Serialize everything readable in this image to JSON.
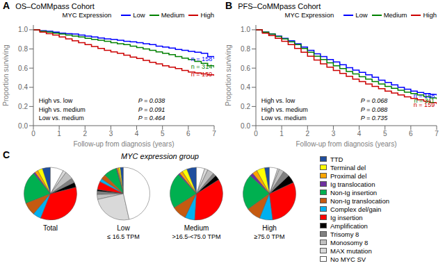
{
  "chart_data": [
    {
      "type": "line",
      "line_style": "step",
      "title": "OS–CoMMpass Cohort",
      "x_label": "Follow-up from diagnosis (years)",
      "y_label": "Proportion surviving",
      "xlim": [
        0,
        7
      ],
      "ylim": [
        0.0,
        1.05
      ],
      "xticks": [
        0,
        1,
        2,
        3,
        4,
        5,
        6,
        7
      ],
      "yticks": [
        {
          "value": 0.0,
          "label": "0.0"
        },
        0.2,
        0.4,
        0.6,
        0.8,
        {
          "value": 1.0,
          "label": "1.0"
        }
      ],
      "grid": false,
      "legend": "top-right",
      "legend_title": "MYC Expression",
      "annotations": [
        {
          "text": "A",
          "style": "bold"
        },
        {
          "text": "n = 158",
          "color": "#0000FF",
          "x": 6.95,
          "y": 0.695
        },
        {
          "text": "n = 314",
          "color": "#008000",
          "x": 6.95,
          "y": 0.615
        },
        {
          "text": "n = 159",
          "color": "#CC0000",
          "x": 6.95,
          "y": 0.535
        },
        {
          "text": "High vs. low",
          "label": "P = 0.038"
        },
        {
          "text": "High vs. medium",
          "label": "P = 0.091"
        },
        {
          "text": "Low vs. medium",
          "label": "P = 0.464"
        }
      ],
      "series": [
        {
          "name": "Low",
          "color": "#0000FF",
          "x": [
            0,
            0.25,
            0.5,
            0.75,
            1.0,
            1.25,
            1.5,
            1.75,
            2.0,
            2.25,
            2.5,
            2.75,
            3.0,
            3.25,
            3.5,
            3.75,
            4.0,
            4.25,
            4.5,
            4.75,
            5.0,
            5.25,
            5.5,
            5.75,
            6.0,
            6.25,
            6.5,
            6.75,
            7.0
          ],
          "values": [
            1.0,
            0.99,
            0.985,
            0.975,
            0.965,
            0.96,
            0.955,
            0.945,
            0.935,
            0.925,
            0.915,
            0.905,
            0.9,
            0.89,
            0.88,
            0.875,
            0.865,
            0.855,
            0.845,
            0.83,
            0.82,
            0.81,
            0.795,
            0.785,
            0.775,
            0.765,
            0.755,
            0.72,
            0.695
          ]
        },
        {
          "name": "Medium",
          "color": "#008000",
          "x": [
            0,
            0.25,
            0.5,
            0.75,
            1.0,
            1.25,
            1.5,
            1.75,
            2.0,
            2.25,
            2.5,
            2.75,
            3.0,
            3.25,
            3.5,
            3.75,
            4.0,
            4.25,
            4.5,
            4.75,
            5.0,
            5.25,
            5.5,
            5.75,
            6.0,
            6.25,
            6.5,
            6.75,
            7.0
          ],
          "values": [
            1.0,
            0.985,
            0.975,
            0.965,
            0.955,
            0.945,
            0.935,
            0.925,
            0.91,
            0.9,
            0.89,
            0.88,
            0.865,
            0.855,
            0.845,
            0.83,
            0.815,
            0.8,
            0.785,
            0.77,
            0.755,
            0.74,
            0.72,
            0.705,
            0.69,
            0.67,
            0.65,
            0.625,
            0.605
          ]
        },
        {
          "name": "High",
          "color": "#CC0000",
          "x": [
            0,
            0.25,
            0.5,
            0.75,
            1.0,
            1.25,
            1.5,
            1.75,
            2.0,
            2.25,
            2.5,
            2.75,
            3.0,
            3.25,
            3.5,
            3.75,
            4.0,
            4.25,
            4.5,
            4.75,
            5.0,
            5.25,
            5.5,
            5.75,
            6.0,
            6.25,
            6.5,
            6.75,
            7.0
          ],
          "values": [
            1.0,
            0.975,
            0.96,
            0.945,
            0.925,
            0.905,
            0.885,
            0.865,
            0.845,
            0.825,
            0.805,
            0.785,
            0.77,
            0.755,
            0.735,
            0.715,
            0.7,
            0.68,
            0.66,
            0.645,
            0.625,
            0.61,
            0.595,
            0.575,
            0.56,
            0.55,
            0.54,
            0.53,
            0.52
          ]
        }
      ]
    },
    {
      "type": "line",
      "line_style": "step",
      "title": "PFS–CoMMpass Cohort",
      "x_label": "Follow-up from diagnosis (years)",
      "y_label": "Proportion surviving",
      "xlim": [
        0,
        7
      ],
      "ylim": [
        0.0,
        1.05
      ],
      "xticks": [
        0,
        1,
        2,
        3,
        4,
        5,
        6,
        7
      ],
      "yticks": [
        {
          "value": 0.0,
          "label": "0.0"
        },
        0.2,
        0.4,
        0.6,
        0.8,
        {
          "value": 1.0,
          "label": "1.0"
        }
      ],
      "grid": false,
      "legend": "top-right",
      "legend_title": "MYC Expression",
      "annotations": [
        {
          "text": "B",
          "style": "bold"
        },
        {
          "text": "n = 158",
          "color": "#0000FF",
          "x": 6.95,
          "y": 0.31
        },
        {
          "text": "n = 311",
          "color": "#008000",
          "x": 6.95,
          "y": 0.265
        },
        {
          "text": "n = 159",
          "color": "#CC0000",
          "x": 6.95,
          "y": 0.22
        },
        {
          "text": "High vs. low",
          "label": "P = 0.068"
        },
        {
          "text": "High vs. medium",
          "label": "P = 0.088"
        },
        {
          "text": "Low vs. medium",
          "label": "P = 0.735"
        }
      ],
      "series": [
        {
          "name": "Low",
          "color": "#0000FF",
          "x": [
            0,
            0.25,
            0.5,
            0.75,
            1.0,
            1.25,
            1.5,
            1.75,
            2.0,
            2.25,
            2.5,
            2.75,
            3.0,
            3.25,
            3.5,
            3.75,
            4.0,
            4.25,
            4.5,
            4.75,
            5.0,
            5.25,
            5.5,
            5.75,
            6.0,
            6.25,
            6.5,
            6.75,
            7.0
          ],
          "values": [
            1.0,
            0.975,
            0.955,
            0.935,
            0.91,
            0.885,
            0.855,
            0.82,
            0.785,
            0.75,
            0.72,
            0.69,
            0.665,
            0.635,
            0.605,
            0.58,
            0.555,
            0.53,
            0.505,
            0.475,
            0.45,
            0.425,
            0.4,
            0.38,
            0.36,
            0.345,
            0.335,
            0.325,
            0.315
          ]
        },
        {
          "name": "Medium",
          "color": "#008000",
          "x": [
            0,
            0.25,
            0.5,
            0.75,
            1.0,
            1.25,
            1.5,
            1.75,
            2.0,
            2.25,
            2.5,
            2.75,
            3.0,
            3.25,
            3.5,
            3.75,
            4.0,
            4.25,
            4.5,
            4.75,
            5.0,
            5.25,
            5.5,
            5.75,
            6.0,
            6.25,
            6.5,
            6.75,
            7.0
          ],
          "values": [
            1.0,
            0.975,
            0.955,
            0.93,
            0.905,
            0.875,
            0.845,
            0.805,
            0.765,
            0.725,
            0.69,
            0.655,
            0.625,
            0.595,
            0.565,
            0.54,
            0.51,
            0.485,
            0.46,
            0.435,
            0.41,
            0.39,
            0.37,
            0.35,
            0.335,
            0.32,
            0.305,
            0.29,
            0.275
          ]
        },
        {
          "name": "High",
          "color": "#CC0000",
          "x": [
            0,
            0.25,
            0.5,
            0.75,
            1.0,
            1.25,
            1.5,
            1.75,
            2.0,
            2.25,
            2.5,
            2.75,
            3.0,
            3.25,
            3.5,
            3.75,
            4.0,
            4.25,
            4.5,
            4.75,
            5.0,
            5.25,
            5.5,
            5.75,
            6.0,
            6.25,
            6.5,
            6.75,
            7.0
          ],
          "values": [
            1.0,
            0.965,
            0.94,
            0.91,
            0.88,
            0.845,
            0.805,
            0.765,
            0.725,
            0.685,
            0.645,
            0.61,
            0.575,
            0.545,
            0.515,
            0.485,
            0.46,
            0.435,
            0.41,
            0.385,
            0.36,
            0.34,
            0.32,
            0.3,
            0.285,
            0.27,
            0.255,
            0.24,
            0.225
          ]
        }
      ]
    },
    {
      "type": "pie",
      "title": "Total",
      "legend": "right",
      "annotations": [
        {
          "text": "C",
          "style": "bold"
        },
        {
          "text": "MYC expression group",
          "style": "italic"
        }
      ],
      "categories": [
        "TTD",
        "Terminal del",
        "Proximal del",
        "Ig translocation",
        "Non-Ig insertion",
        "Non-Ig translocation",
        "Complex del/gain",
        "Ig insertion",
        "Amplification",
        "Trisomy 8",
        "Monosomy 8",
        "MAX mutation",
        "No MYC SV"
      ],
      "colors": [
        "#1F4E9D",
        "#FFFF00",
        "#FFA500",
        "#7030A0",
        "#00B050",
        "#C55A11",
        "#00B0F0",
        "#FF0000",
        "#000000",
        "#808080",
        "#C0C0C0",
        "#D9D9D9",
        "#FFFFFF"
      ],
      "values": [
        5,
        3,
        2,
        1,
        20,
        8,
        5,
        35,
        3,
        3,
        5,
        2,
        8
      ]
    },
    {
      "type": "pie",
      "title": "Low",
      "subtitle": "≤ 16.5 TPM",
      "categories": [
        "TTD",
        "Terminal del",
        "Proximal del",
        "Ig translocation",
        "Non-Ig insertion",
        "Non-Ig translocation",
        "Complex del/gain",
        "Ig insertion",
        "Amplification",
        "Trisomy 8",
        "Monosomy 8",
        "MAX mutation",
        "No MYC SV"
      ],
      "colors": [
        "#1F4E9D",
        "#FFFF00",
        "#FFA500",
        "#7030A0",
        "#00B050",
        "#C55A11",
        "#00B0F0",
        "#FF0000",
        "#000000",
        "#808080",
        "#C0C0C0",
        "#D9D9D9",
        "#FFFFFF"
      ],
      "values": [
        2,
        1,
        1,
        0.5,
        8,
        3,
        2,
        5,
        1,
        2,
        3,
        25,
        46.5
      ]
    },
    {
      "type": "pie",
      "title": "Medium",
      "subtitle": ">16.5-<75.0 TPM",
      "categories": [
        "TTD",
        "Terminal del",
        "Proximal del",
        "Ig translocation",
        "Non-Ig insertion",
        "Non-Ig translocation",
        "Complex del/gain",
        "Ig insertion",
        "Amplification",
        "Trisomy 8",
        "Monosomy 8",
        "MAX mutation",
        "No MYC SV"
      ],
      "colors": [
        "#1F4E9D",
        "#FFFF00",
        "#FFA500",
        "#7030A0",
        "#00B050",
        "#C55A11",
        "#00B0F0",
        "#FF0000",
        "#000000",
        "#808080",
        "#C0C0C0",
        "#D9D9D9",
        "#FFFFFF"
      ],
      "values": [
        6,
        3,
        2,
        1,
        22,
        9,
        6,
        35,
        3,
        2,
        4,
        2,
        5
      ]
    },
    {
      "type": "pie",
      "title": "High",
      "subtitle": "≥75.0 TPM",
      "categories": [
        "TTD",
        "Terminal del",
        "Proximal del",
        "Ig translocation",
        "Non-Ig insertion",
        "Non-Ig translocation",
        "Complex del/gain",
        "Ig insertion",
        "Amplification",
        "Trisomy 8",
        "Monosomy 8",
        "MAX mutation",
        "No MYC SV"
      ],
      "colors": [
        "#1F4E9D",
        "#FFFF00",
        "#FFA500",
        "#7030A0",
        "#00B050",
        "#C55A11",
        "#00B0F0",
        "#FF0000",
        "#000000",
        "#808080",
        "#C0C0C0",
        "#D9D9D9",
        "#FFFFFF"
      ],
      "values": [
        3,
        5,
        3,
        2,
        22,
        9,
        8,
        30,
        5,
        4,
        3,
        1,
        5
      ]
    }
  ]
}
